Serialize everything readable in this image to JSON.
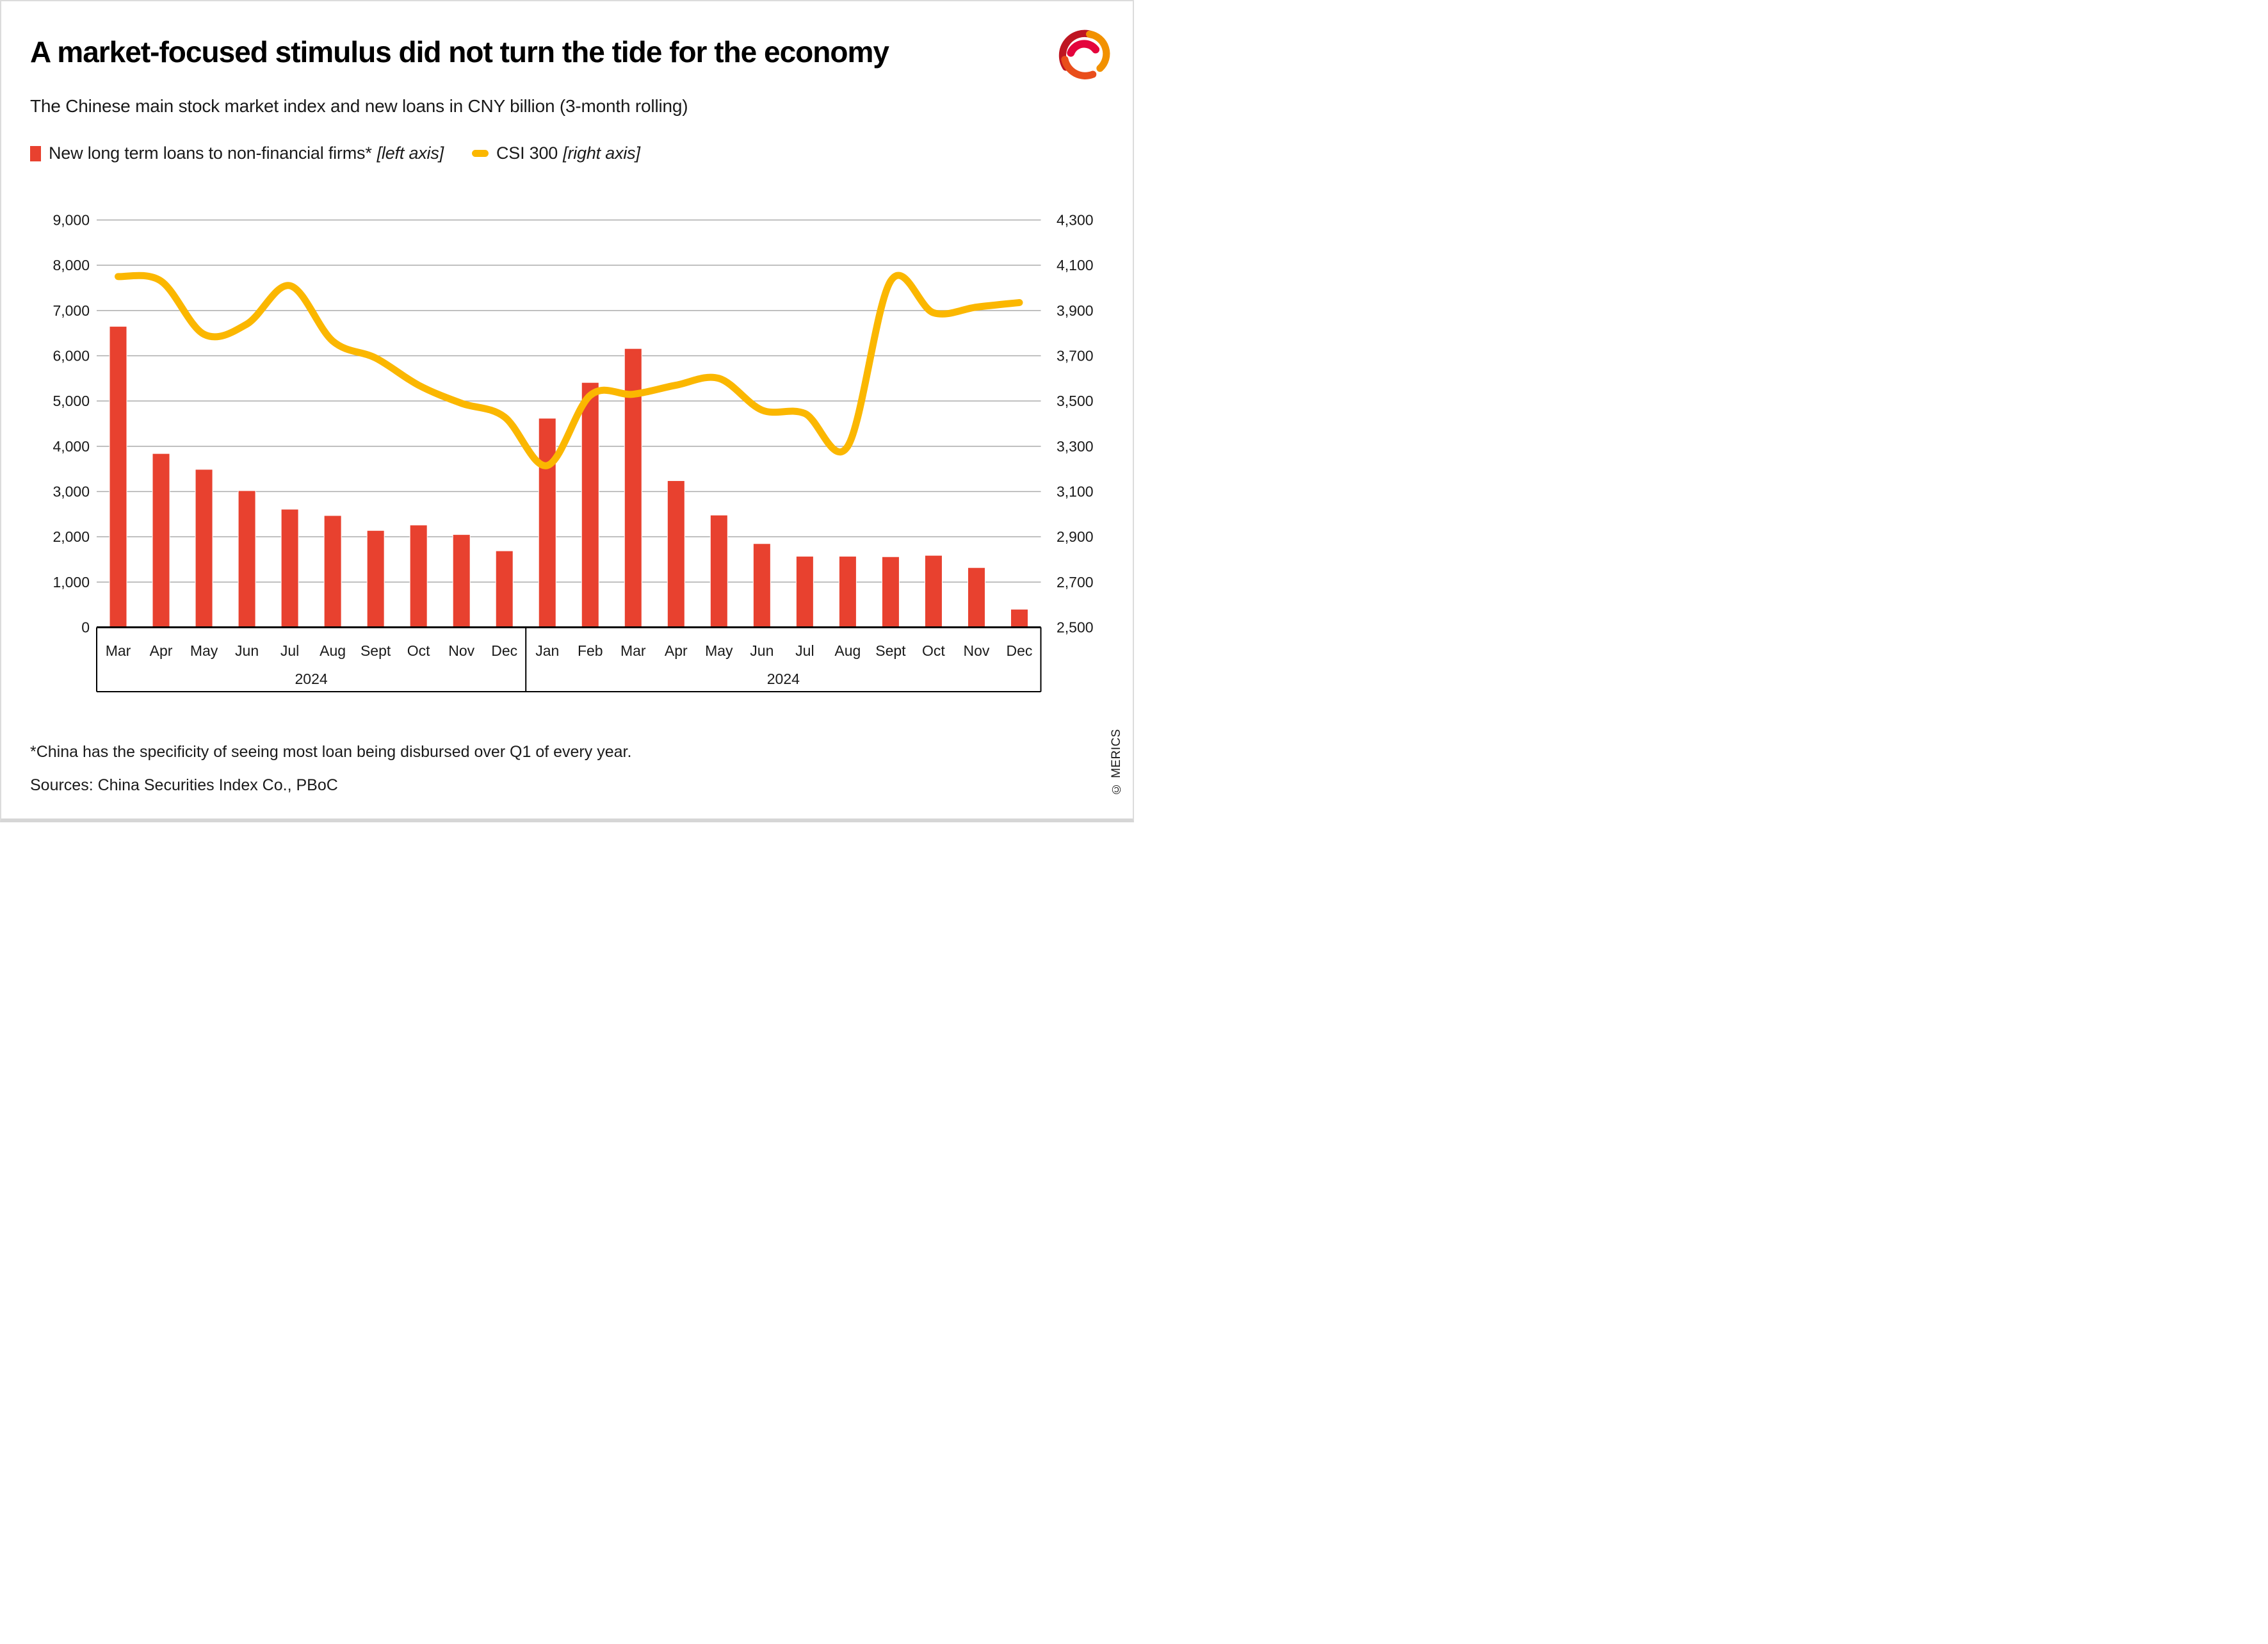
{
  "header": {
    "title": "A market-focused stimulus did not turn the tide for the economy",
    "subtitle": "The Chinese main stock market index and new loans in CNY billion (3-month rolling)"
  },
  "legend": {
    "items": [
      {
        "label": "New long term loans to non-financial firms*",
        "axis_note": "[left axis]",
        "marker": "square",
        "color": "#E8412F"
      },
      {
        "label": "CSI 300",
        "axis_note": "[right axis]",
        "marker": "pill",
        "color": "#FBB700"
      }
    ]
  },
  "chart_data": {
    "type": "combo-bar-line",
    "categories": [
      "Mar",
      "Apr",
      "May",
      "Jun",
      "Jul",
      "Aug",
      "Sept",
      "Oct",
      "Nov",
      "Dec",
      "Jan",
      "Feb",
      "Mar",
      "Apr",
      "May",
      "Jun",
      "Jul",
      "Aug",
      "Sept",
      "Oct",
      "Nov",
      "Dec"
    ],
    "year_groups": [
      {
        "label": "2024",
        "span": [
          0,
          9
        ]
      },
      {
        "label": "2024",
        "span": [
          10,
          21
        ]
      }
    ],
    "series": [
      {
        "name": "New long term loans to non-financial firms*",
        "type": "bar",
        "axis": "left",
        "color": "#E8412F",
        "values": [
          6650,
          3840,
          3490,
          3020,
          2610,
          2470,
          2140,
          2260,
          2050,
          1690,
          4620,
          5410,
          6160,
          3240,
          2480,
          1850,
          1570,
          1570,
          1560,
          1590,
          1320,
          400
        ]
      },
      {
        "name": "CSI 300",
        "type": "line",
        "axis": "right",
        "color": "#FBB700",
        "values": [
          4050,
          4030,
          3795,
          3840,
          4010,
          3765,
          3690,
          3570,
          3490,
          3430,
          3215,
          3525,
          3530,
          3570,
          3600,
          3460,
          3445,
          3300,
          4030,
          3890,
          3915,
          3935
        ]
      }
    ],
    "left_axis": {
      "min": 0,
      "max": 9000,
      "step": 1000,
      "ticks": [
        "9,000",
        "8,000",
        "7,000",
        "6,000",
        "5,000",
        "4,000",
        "3,000",
        "2,000",
        "1,000",
        "0"
      ]
    },
    "right_axis": {
      "min": 2500,
      "max": 4300,
      "step": 200,
      "ticks": [
        "4,300",
        "4,100",
        "3,900",
        "3,700",
        "3,500",
        "3,300",
        "3,100",
        "2,900",
        "2,700",
        "2,500"
      ]
    },
    "grid": true,
    "legend_position": "top-left"
  },
  "footer": {
    "footnote": "*China has the specificity of seeing most loan being disbursed over Q1 of every year.",
    "sources": "Sources: China Securities Index Co., PBoC",
    "copyright": "© MERICS"
  },
  "colors": {
    "bar": "#E8412F",
    "line": "#FBB700",
    "grid": "#ABABAB",
    "axis_box": "#000000",
    "text": "#1A1A1A"
  }
}
